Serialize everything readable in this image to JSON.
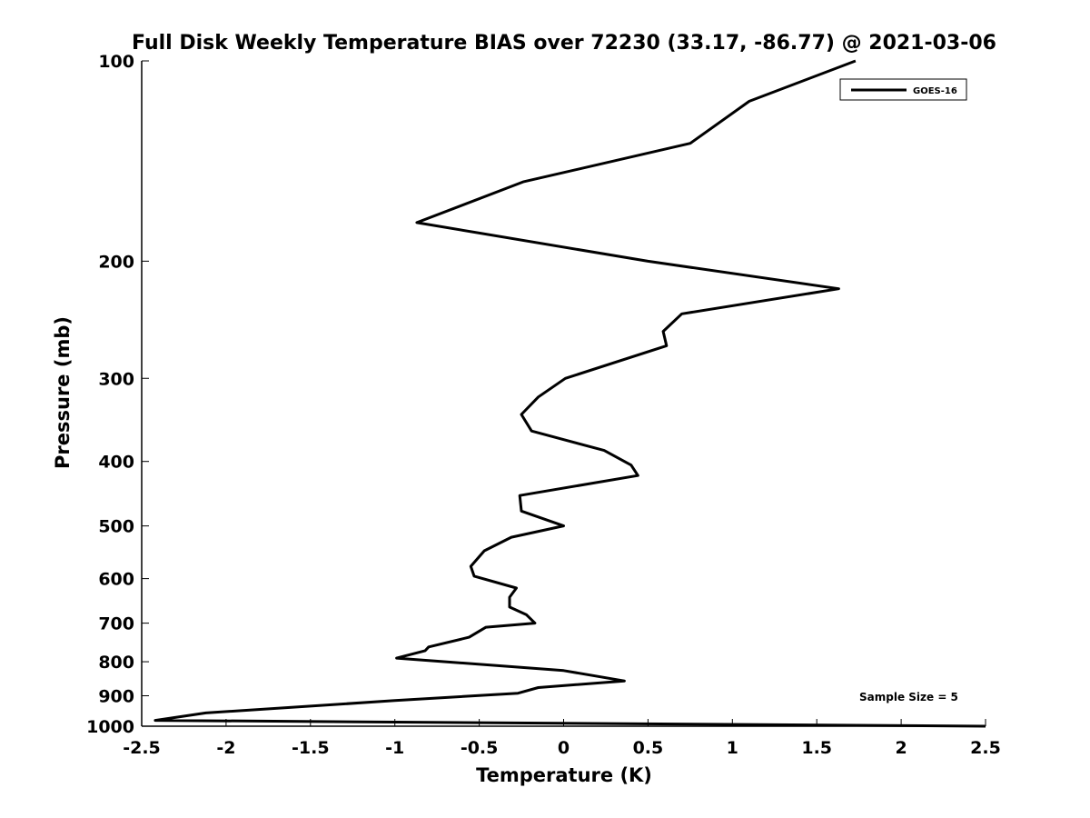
{
  "chart_data": {
    "type": "line",
    "title": "Full Disk Weekly Temperature BIAS over 72230 (33.17, -86.77) @ 2021-03-06",
    "xlabel": "Temperature (K)",
    "ylabel": "Pressure (mb)",
    "xlim": [
      -2.5,
      2.5
    ],
    "ylim": [
      100,
      1000
    ],
    "y_scale": "log",
    "y_reversed": true,
    "xticks": [
      -2.5,
      -2,
      -1.5,
      -1,
      -0.5,
      0,
      0.5,
      1,
      1.5,
      2,
      2.5
    ],
    "xtick_labels": [
      "-2.5",
      "-2",
      "-1.5",
      "-1",
      "-0.5",
      "0",
      "0.5",
      "1",
      "1.5",
      "2",
      "2.5"
    ],
    "yticks": [
      100,
      200,
      300,
      400,
      500,
      600,
      700,
      800,
      900,
      1000
    ],
    "ytick_labels": [
      "100",
      "200",
      "300",
      "400",
      "500",
      "600",
      "700",
      "800",
      "900",
      "1000"
    ],
    "grid": false,
    "legend_position": "top-right",
    "series": [
      {
        "name": "GOES-16",
        "color": "#000000",
        "x": [
          1.73,
          1.1,
          0.75,
          -0.24,
          -0.87,
          0.5,
          1.63,
          0.7,
          0.59,
          0.61,
          0.01,
          -0.15,
          -0.25,
          -0.19,
          0.24,
          0.4,
          0.44,
          -0.26,
          -0.25,
          0.0,
          -0.31,
          -0.47,
          -0.55,
          -0.53,
          -0.28,
          -0.32,
          -0.32,
          -0.22,
          -0.17,
          -0.46,
          -0.56,
          -0.8,
          -0.82,
          -0.99,
          0.0,
          0.36,
          -0.15,
          -0.27,
          -1.0,
          -2.12,
          -2.42,
          2.5
        ],
        "y": [
          100,
          115,
          133,
          152,
          175,
          200,
          220,
          240,
          255,
          268,
          300,
          320,
          340,
          360,
          385,
          405,
          420,
          450,
          475,
          500,
          520,
          545,
          575,
          595,
          620,
          640,
          662,
          680,
          700,
          710,
          735,
          760,
          770,
          790,
          825,
          855,
          875,
          892,
          915,
          955,
          980,
          1000
        ]
      }
    ],
    "annotations": [
      "Sample Size = 5"
    ]
  }
}
